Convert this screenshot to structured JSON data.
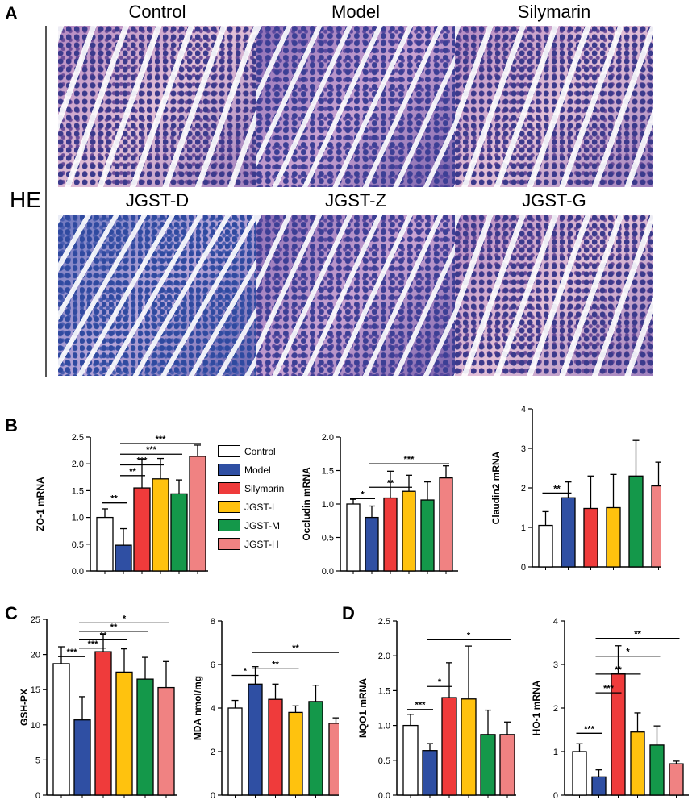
{
  "panels": {
    "A": "A",
    "B": "B",
    "C": "C",
    "D": "D"
  },
  "he_label": "HE",
  "images": [
    {
      "title": "Control",
      "style": "pink"
    },
    {
      "title": "Model",
      "style": "tissue"
    },
    {
      "title": "Silymarin",
      "style": "pink"
    },
    {
      "title": "JGST-D",
      "style": "blue"
    },
    {
      "title": "JGST-Z",
      "style": "tissue"
    },
    {
      "title": "JGST-G",
      "style": "pink"
    }
  ],
  "legend": [
    {
      "label": "Control",
      "color": "#ffffff"
    },
    {
      "label": "Model",
      "color": "#2f4fa3"
    },
    {
      "label": "Silymarin",
      "color": "#ef3b3b"
    },
    {
      "label": "JGST-L",
      "color": "#ffc20e"
    },
    {
      "label": "JGST-M",
      "color": "#14984a"
    },
    {
      "label": "JGST-H",
      "color": "#f08282"
    }
  ],
  "chart_data": [
    {
      "type": "bar",
      "ylabel": "ZO-1 mRNA",
      "ylim": [
        0,
        2.5
      ],
      "yticks": [
        "0.0",
        "0.5",
        "1.0",
        "1.5",
        "2.0",
        "2.5"
      ],
      "values": [
        1.0,
        0.48,
        1.55,
        1.72,
        1.44,
        2.14
      ],
      "errors": [
        0.16,
        0.31,
        0.54,
        0.38,
        0.26,
        0.21
      ],
      "sig": [
        {
          "a": 0,
          "b": 1,
          "y": 1.27,
          "label": "**"
        },
        {
          "a": 1,
          "b": 2,
          "y": 1.78,
          "label": "**"
        },
        {
          "a": 1,
          "b": 3,
          "y": 1.98,
          "label": "***"
        },
        {
          "a": 1,
          "b": 4,
          "y": 2.18,
          "label": "***"
        },
        {
          "a": 1,
          "b": 5,
          "y": 2.38,
          "label": "***"
        }
      ]
    },
    {
      "type": "bar",
      "ylabel": "Occludin mRNA",
      "ylim": [
        0,
        2.0
      ],
      "yticks": [
        "0.0",
        "0.5",
        "1.0",
        "1.5",
        "2.0"
      ],
      "values": [
        1.0,
        0.8,
        1.09,
        1.19,
        1.06,
        1.39
      ],
      "errors": [
        0.07,
        0.17,
        0.4,
        0.24,
        0.27,
        0.18
      ],
      "sig": [
        {
          "a": 0,
          "b": 1,
          "y": 1.08,
          "label": "*"
        },
        {
          "a": 1,
          "b": 3,
          "y": 1.25,
          "label": "**"
        },
        {
          "a": 1,
          "b": 5,
          "y": 1.6,
          "label": "***"
        }
      ]
    },
    {
      "type": "bar",
      "ylabel": "Claudin2 mRNA",
      "ylim": [
        0,
        4
      ],
      "yticks": [
        "0",
        "1",
        "2",
        "3",
        "4"
      ],
      "values": [
        1.05,
        1.75,
        1.48,
        1.5,
        2.3,
        2.05
      ],
      "errors": [
        0.35,
        0.4,
        0.82,
        0.84,
        0.9,
        0.6
      ],
      "sig": [
        {
          "a": 0,
          "b": 1,
          "y": 1.87,
          "label": "**"
        }
      ]
    },
    {
      "type": "bar",
      "ylabel": "GSH-PX",
      "ylim": [
        0,
        25
      ],
      "yticks": [
        "0",
        "5",
        "10",
        "15",
        "20",
        "25"
      ],
      "values": [
        18.7,
        10.7,
        20.4,
        17.5,
        16.5,
        15.3
      ],
      "errors": [
        2.4,
        3.3,
        2.5,
        3.3,
        3.1,
        3.7
      ],
      "sig": [
        {
          "a": 0,
          "b": 1,
          "y": 19.7,
          "label": "***"
        },
        {
          "a": 1,
          "b": 2,
          "y": 20.9,
          "label": "***"
        },
        {
          "a": 1,
          "b": 3,
          "y": 22.1,
          "label": "**"
        },
        {
          "a": 1,
          "b": 4,
          "y": 23.3,
          "label": "**"
        },
        {
          "a": 1,
          "b": 5,
          "y": 24.5,
          "label": "*"
        }
      ]
    },
    {
      "type": "bar",
      "ylabel": "MDA nmol/mg",
      "ylim": [
        0,
        8
      ],
      "yticks": [
        "0",
        "2",
        "4",
        "6",
        "8"
      ],
      "values": [
        4.0,
        5.1,
        4.4,
        3.8,
        4.3,
        3.3
      ],
      "errors": [
        0.35,
        0.8,
        0.7,
        0.3,
        0.75,
        0.25
      ],
      "sig": [
        {
          "a": 0,
          "b": 1,
          "y": 5.5,
          "label": "*"
        },
        {
          "a": 1,
          "b": 3,
          "y": 5.8,
          "label": "**"
        },
        {
          "a": 1,
          "b": 5,
          "y": 6.55,
          "label": "**"
        }
      ]
    },
    {
      "type": "bar",
      "ylabel": "NQO1 mRNA",
      "ylim": [
        0,
        2.5
      ],
      "yticks": [
        "0.0",
        "0.5",
        "1.0",
        "1.5",
        "2.0",
        "2.5"
      ],
      "values": [
        1.0,
        0.64,
        1.4,
        1.38,
        0.87,
        0.87
      ],
      "errors": [
        0.16,
        0.1,
        0.5,
        0.76,
        0.35,
        0.18
      ],
      "sig": [
        {
          "a": 0,
          "b": 1,
          "y": 1.23,
          "label": "***"
        },
        {
          "a": 1,
          "b": 2,
          "y": 1.56,
          "label": "*"
        },
        {
          "a": 1,
          "b": 5,
          "y": 2.23,
          "label": "*"
        }
      ]
    },
    {
      "type": "bar",
      "ylabel": "HO-1 mRNA",
      "ylim": [
        0,
        4
      ],
      "yticks": [
        "0",
        "1",
        "2",
        "3",
        "4"
      ],
      "values": [
        1.0,
        0.42,
        2.8,
        1.45,
        1.15,
        0.72
      ],
      "errors": [
        0.18,
        0.16,
        0.63,
        0.44,
        0.44,
        0.06
      ],
      "sig": [
        {
          "a": 0,
          "b": 1,
          "y": 1.42,
          "label": "***"
        },
        {
          "a": 1,
          "b": 2,
          "y": 2.35,
          "label": "***"
        },
        {
          "a": 1,
          "b": 3,
          "y": 2.78,
          "label": "**"
        },
        {
          "a": 1,
          "b": 4,
          "y": 3.19,
          "label": "*"
        },
        {
          "a": 1,
          "b": 5,
          "y": 3.6,
          "label": "**"
        }
      ]
    }
  ]
}
